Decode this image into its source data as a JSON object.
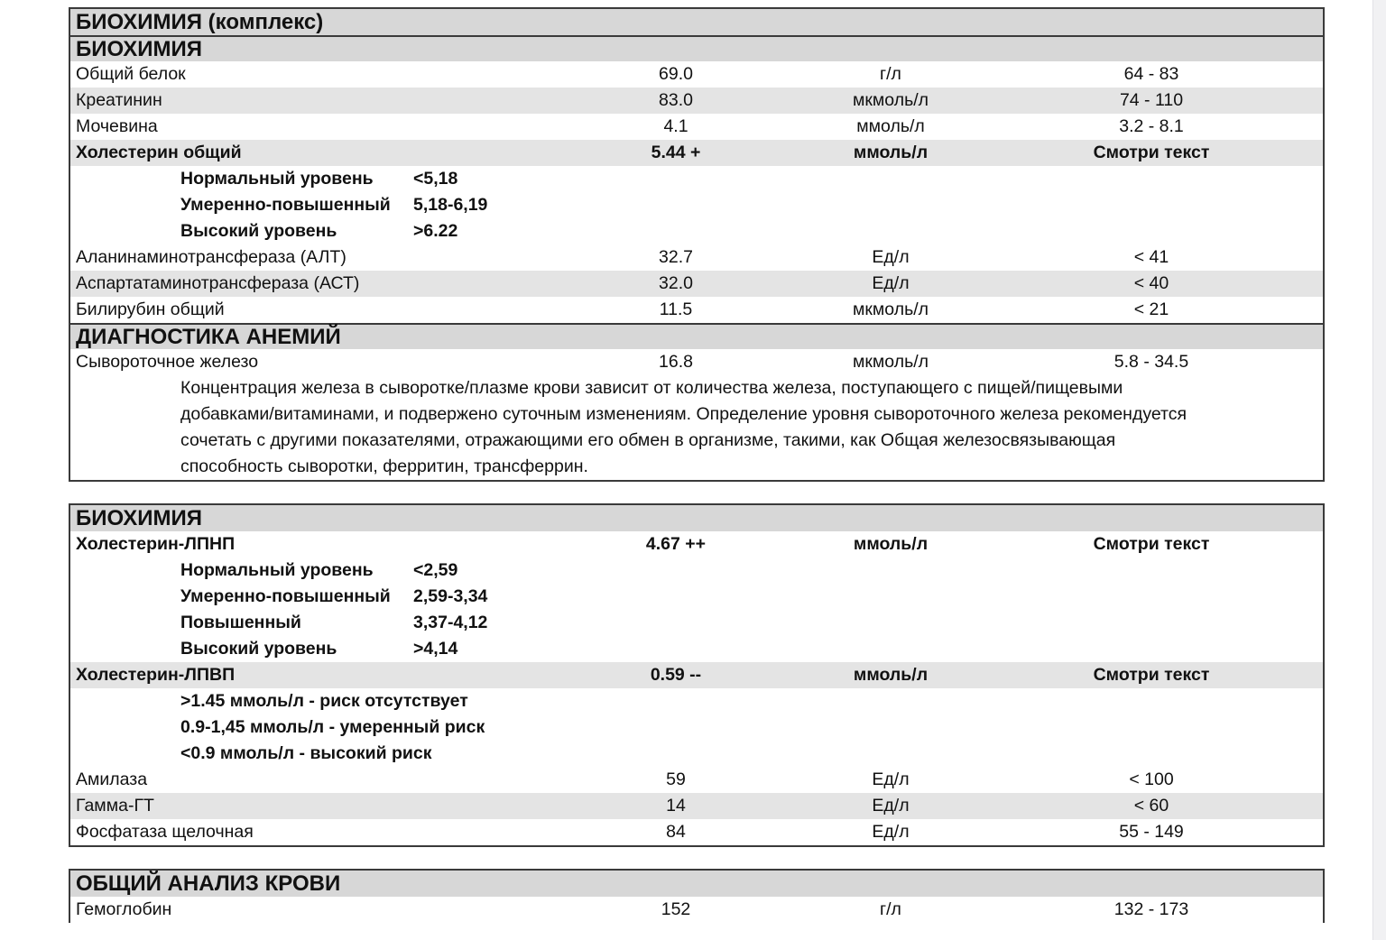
{
  "sections": [
    {
      "title": "БИОХИМИЯ (комплекс)",
      "groups": [
        {
          "title": "БИОХИМИЯ",
          "items": [
            {
              "type": "row",
              "name": "Общий белок",
              "value": "69.0",
              "unit": "г/л",
              "ref": "64 - 83"
            },
            {
              "type": "row",
              "name": "Креатинин",
              "value": "83.0",
              "unit": "мкмоль/л",
              "ref": "74 - 110"
            },
            {
              "type": "row",
              "name": "Мочевина",
              "value": "4.1",
              "unit": "ммоль/л",
              "ref": "3.2 - 8.1"
            },
            {
              "type": "row",
              "name": "Холестерин общий",
              "value": "5.44 +",
              "unit": "ммоль/л",
              "ref": "Смотри текст",
              "bold": true
            },
            {
              "type": "sub",
              "label": "Нормальный уровень",
              "value": "<5,18"
            },
            {
              "type": "sub",
              "label": "Умеренно-повышенный",
              "value": "5,18-6,19"
            },
            {
              "type": "sub",
              "label": "Высокий уровень",
              "value": ">6.22"
            },
            {
              "type": "row",
              "name": "Аланинаминотрансфераза (АЛТ)",
              "value": "32.7",
              "unit": "Ед/л",
              "ref": "< 41"
            },
            {
              "type": "row",
              "name": "Аспартатаминотрансфераза (АСТ)",
              "value": "32.0",
              "unit": "Ед/л",
              "ref": "< 40"
            },
            {
              "type": "row",
              "name": "Билирубин общий",
              "value": "11.5",
              "unit": "мкмоль/л",
              "ref": "< 21"
            }
          ]
        },
        {
          "title": "ДИАГНОСТИКА АНЕМИЙ",
          "items": [
            {
              "type": "row",
              "name": "Сывороточное железо",
              "value": "16.8",
              "unit": "мкмоль/л",
              "ref": "5.8 - 34.5"
            },
            {
              "type": "note",
              "lines": [
                "Концентрация железа в сыворотке/плазме крови зависит от количества железа, поступающего с пищей/пищевыми",
                "добавками/витаминами, и подвержено суточным изменениям. Определение уровня сывороточного железа рекомендуется",
                "сочетать с другими показателями, отражающими его обмен в организме, такими, как Общая железосвязывающая",
                "способность сыворотки, ферритин, трансферрин."
              ]
            }
          ]
        }
      ]
    },
    {
      "title": "БИОХИМИЯ",
      "groups": [
        {
          "items": [
            {
              "type": "row",
              "name": "Холестерин-ЛПНП",
              "value": "4.67 ++",
              "unit": "ммоль/л",
              "ref": "Смотри текст",
              "bold": true
            },
            {
              "type": "sub",
              "label": "Нормальный уровень",
              "value": "<2,59"
            },
            {
              "type": "sub",
              "label": "Умеренно-повышенный",
              "value": "2,59-3,34"
            },
            {
              "type": "sub",
              "label": "Повышенный",
              "value": "3,37-4,12"
            },
            {
              "type": "sub",
              "label": "Высокий уровень",
              "value": ">4,14"
            },
            {
              "type": "row",
              "name": "Холестерин-ЛПВП",
              "value": "0.59 --",
              "unit": "ммоль/л",
              "ref": "Смотри текст",
              "bold": true
            },
            {
              "type": "sub",
              "label": ">1.45 ммоль/л - риск отсутствует",
              "value": ""
            },
            {
              "type": "sub",
              "label": "0.9-1,45 ммоль/л - умеренный риск",
              "value": ""
            },
            {
              "type": "sub",
              "label": "<0.9 ммоль/л - высокий риск",
              "value": ""
            },
            {
              "type": "row",
              "name": "Амилаза",
              "value": "59",
              "unit": "Ед/л",
              "ref": "< 100"
            },
            {
              "type": "row",
              "name": "Гамма-ГТ",
              "value": "14",
              "unit": "Ед/л",
              "ref": "< 60"
            },
            {
              "type": "row",
              "name": "Фосфатаза щелочная",
              "value": "84",
              "unit": "Ед/л",
              "ref": "55 - 149"
            }
          ]
        }
      ]
    },
    {
      "title": "ОБЩИЙ АНАЛИЗ КРОВИ",
      "groups": [
        {
          "items": [
            {
              "type": "row",
              "name": "Гемоглобин",
              "value": "152",
              "unit": "г/л",
              "ref": "132 - 173"
            }
          ]
        }
      ]
    }
  ]
}
